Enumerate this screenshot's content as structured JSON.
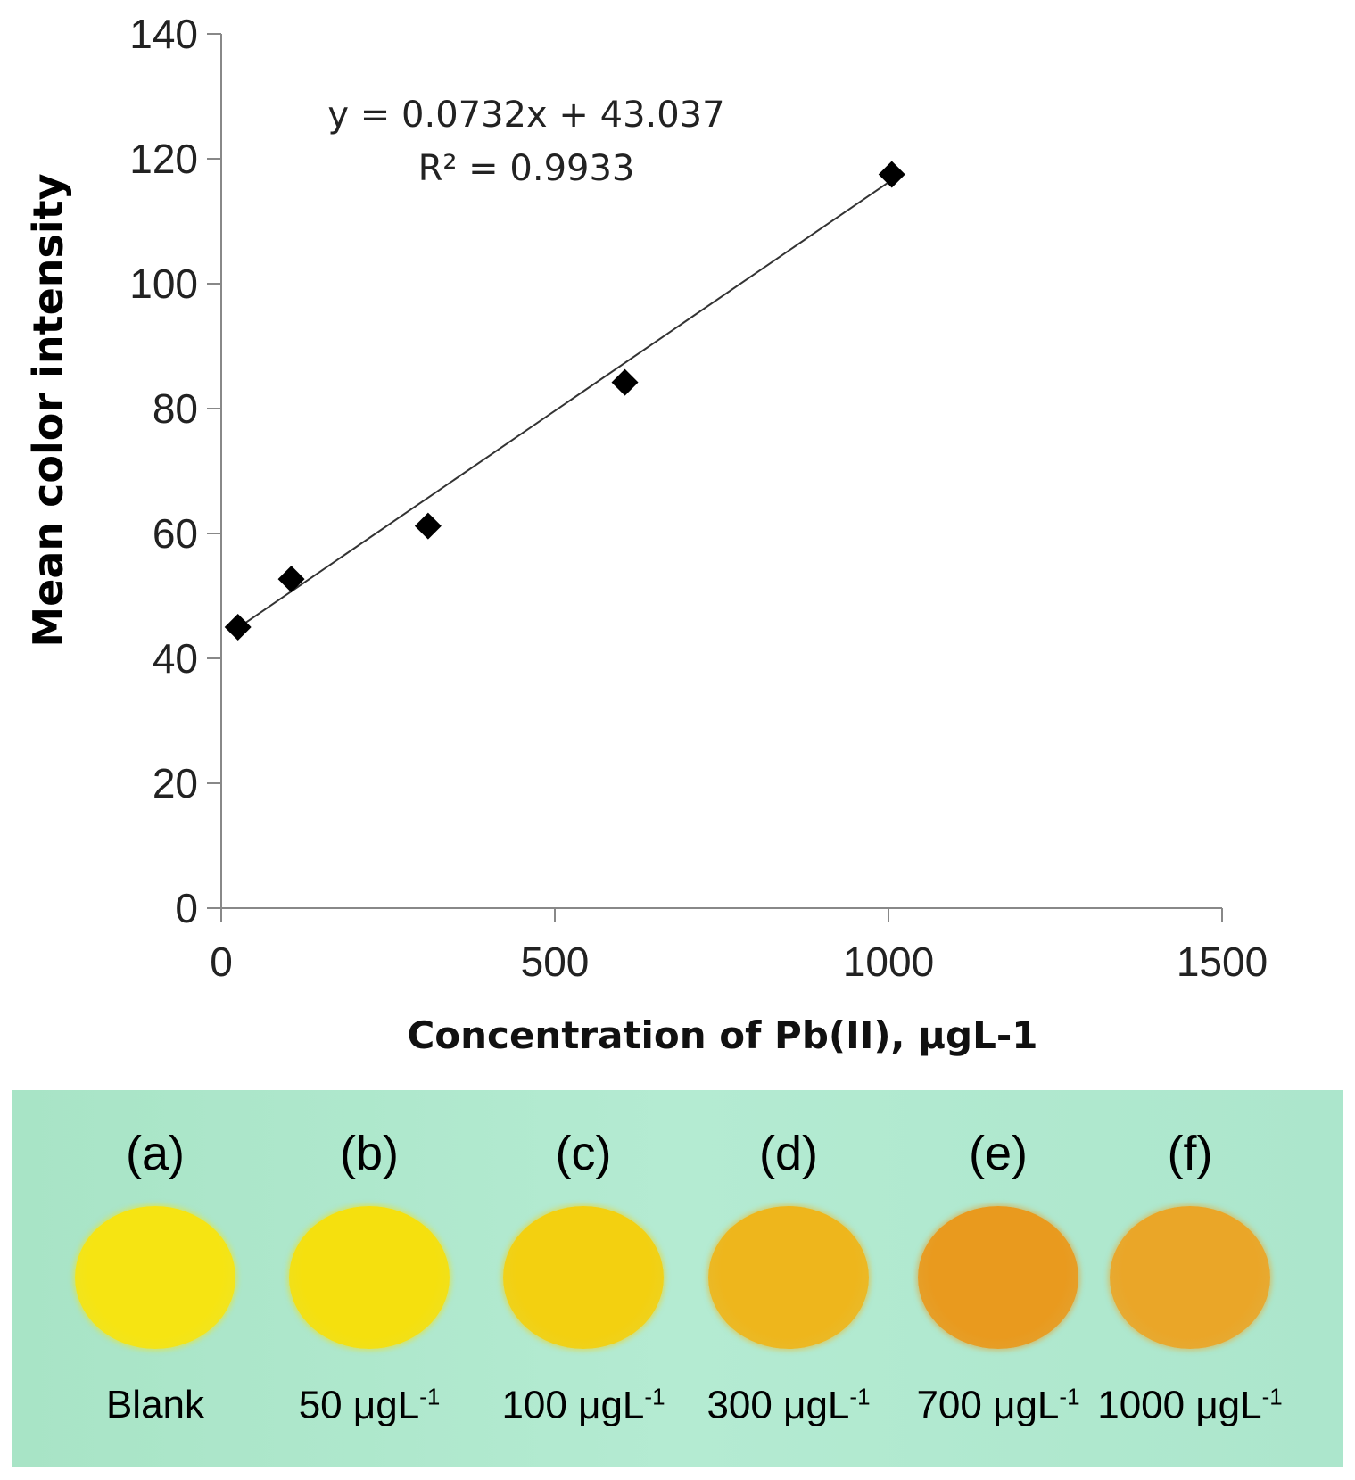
{
  "chart_data": {
    "type": "scatter",
    "title": "",
    "xlabel": "Concentration of Pb(II), μgL-1",
    "ylabel": "Mean color intensity",
    "xlim": [
      0,
      1500
    ],
    "ylim": [
      0,
      140
    ],
    "xticks": [
      0,
      500,
      1000,
      1500
    ],
    "yticks": [
      0,
      20,
      40,
      60,
      80,
      100,
      120,
      140
    ],
    "xtick_labels": [
      "0",
      "500",
      "1000",
      "1500"
    ],
    "ytick_labels": [
      "0",
      "20",
      "40",
      "60",
      "80",
      "100",
      "120",
      "140"
    ],
    "series": [
      {
        "name": "Mean color intensity",
        "marker": "diamond",
        "x": [
          25,
          105,
          310,
          605,
          1005
        ],
        "y": [
          45,
          52.7,
          61.2,
          84.2,
          117.5
        ]
      }
    ],
    "trendline": {
      "type": "linear",
      "slope": 0.0732,
      "intercept": 43.037,
      "x_range": [
        25,
        1005
      ]
    },
    "annotations": {
      "equation": "y = 0.0732x + 43.037",
      "r2_label": "R² = 0.9933"
    },
    "grid": false,
    "legend": "none"
  },
  "photo_panel": {
    "samples": [
      {
        "letter": "(a)",
        "label": "Blank",
        "unit": "",
        "sup": "",
        "color": "#f6e412"
      },
      {
        "letter": "(b)",
        "label": "50",
        "unit": " μgL",
        "sup": "-1",
        "color": "#f5e00e"
      },
      {
        "letter": "(c)",
        "label": "100",
        "unit": " μgL",
        "sup": "-1",
        "color": "#f3d010"
      },
      {
        "letter": "(d)",
        "label": "300",
        "unit": " μgL",
        "sup": "-1",
        "color": "#eeb61c"
      },
      {
        "letter": "(e)",
        "label": "700",
        "unit": " μgL",
        "sup": "-1",
        "color": "#e99a1e"
      },
      {
        "letter": "(f)",
        "label": "1000",
        "unit": " μgL",
        "sup": "-1",
        "color": "#eaa628"
      }
    ]
  }
}
